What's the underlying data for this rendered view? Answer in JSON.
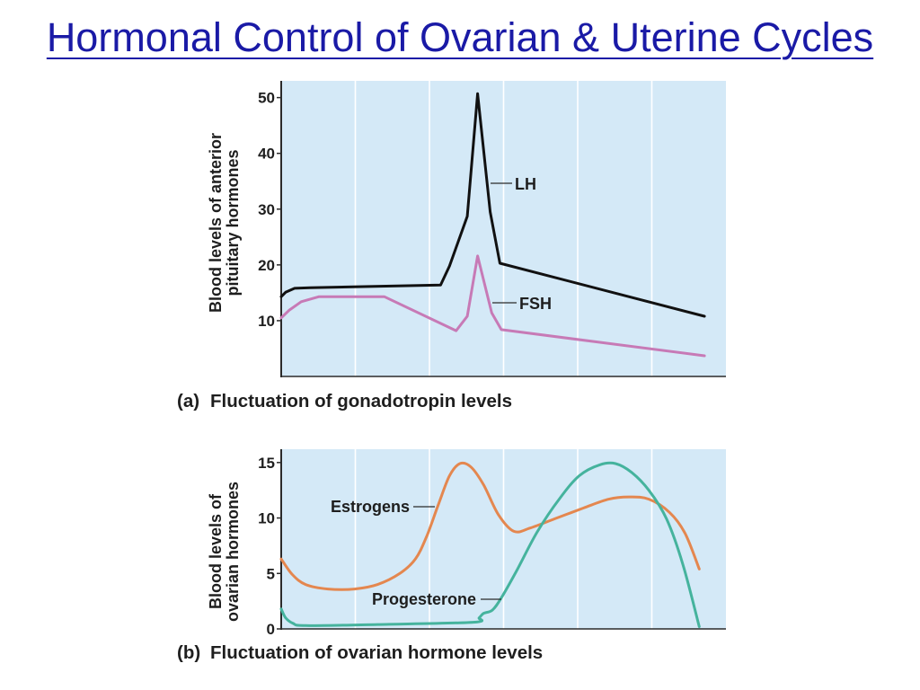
{
  "slide": {
    "title": "Hormonal Control of Ovarian & Uterine Cycles",
    "title_color": "#1a1aa6",
    "plot_background": "#d4e9f7",
    "axis_color": "#2b2b2b",
    "text_color": "#1e1e1e"
  },
  "chart_data": [
    {
      "type": "line",
      "panel_label": "(a)",
      "title": "Fluctuation of gonadotropin levels",
      "ylabel": [
        "Blood levels of anterior",
        "pituitary hormones"
      ],
      "xlabel": "",
      "xlim": [
        0,
        6
      ],
      "ylim": [
        0,
        53
      ],
      "yticks": [
        10,
        20,
        30,
        40,
        50
      ],
      "grid": "vertical",
      "legend": "inline",
      "series": [
        {
          "name": "LH",
          "color": "#111111",
          "x": [
            0,
            0.06,
            0.18,
            0.39,
            2.15,
            2.27,
            2.51,
            2.65,
            2.82,
            2.95,
            5.71
          ],
          "y": [
            14.3,
            15.1,
            15.8,
            15.9,
            16.4,
            19.8,
            28.7,
            50.7,
            29.5,
            20.3,
            10.8
          ]
        },
        {
          "name": "FSH",
          "color": "#c77ab6",
          "x": [
            0,
            0.11,
            0.27,
            0.51,
            1.39,
            2.36,
            2.51,
            2.65,
            2.84,
            2.97,
            5.71
          ],
          "y": [
            10.5,
            11.9,
            13.4,
            14.3,
            14.3,
            8.2,
            10.8,
            21.6,
            11.4,
            8.4,
            3.7
          ]
        }
      ]
    },
    {
      "type": "line",
      "panel_label": "(b)",
      "title": "Fluctuation of ovarian hormone levels",
      "ylabel": [
        "Blood levels of",
        "ovarian hormones"
      ],
      "xlabel": "",
      "xlim": [
        0,
        6
      ],
      "ylim": [
        0,
        16.2
      ],
      "yticks": [
        0,
        5,
        10,
        15
      ],
      "grid": "vertical",
      "legend": "inline",
      "series": [
        {
          "name": "Estrogens",
          "color": "#e4874f",
          "x": [
            0,
            0.15,
            0.33,
            0.63,
            0.99,
            1.3,
            1.6,
            1.81,
            1.96,
            2.12,
            2.27,
            2.41,
            2.56,
            2.73,
            2.93,
            3.14,
            3.36,
            3.72,
            4.08,
            4.42,
            4.69,
            4.96,
            5.24,
            5.45,
            5.64
          ],
          "y": [
            6.3,
            4.9,
            4.0,
            3.6,
            3.6,
            4.0,
            5.0,
            6.3,
            8.3,
            11.2,
            13.8,
            14.9,
            14.6,
            13.0,
            10.3,
            8.8,
            9.1,
            10.0,
            10.9,
            11.7,
            11.9,
            11.7,
            10.5,
            8.6,
            5.4
          ]
        },
        {
          "name": "Progesterone",
          "color": "#45b39d",
          "x": [
            0,
            0.06,
            0.16,
            0.33,
            1.3,
            2.59,
            2.67,
            2.73,
            2.85,
            2.97,
            3.18,
            3.45,
            3.75,
            4.02,
            4.3,
            4.51,
            4.73,
            4.96,
            5.2,
            5.42,
            5.64
          ],
          "y": [
            1.8,
            1.0,
            0.5,
            0.3,
            0.4,
            0.6,
            1.0,
            1.4,
            1.7,
            2.8,
            5.3,
            8.7,
            11.7,
            13.8,
            14.8,
            14.9,
            14.1,
            12.5,
            9.9,
            5.8,
            0.2
          ]
        }
      ]
    }
  ]
}
